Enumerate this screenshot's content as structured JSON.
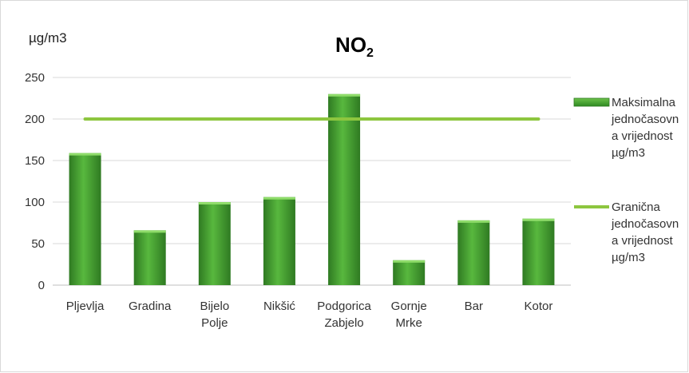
{
  "chart_data": {
    "type": "bar",
    "title": "NO",
    "title_subscript": "2",
    "ylabel": "µg/m3",
    "ylim": [
      0,
      250
    ],
    "yticks": [
      0,
      50,
      100,
      150,
      200,
      250
    ],
    "grid": "horizontal",
    "legend_position": "right",
    "categories": [
      [
        "Pljevlja"
      ],
      [
        "Gradina"
      ],
      [
        "Bijelo",
        "Polje"
      ],
      [
        "Nikšić"
      ],
      [
        "Podgorica",
        "Zabjelo"
      ],
      [
        "Gornje",
        "Mrke"
      ],
      [
        "Bar"
      ],
      [
        "Kotor"
      ]
    ],
    "series": [
      {
        "name": [
          "Maksimalna",
          "jednočasovn",
          "a vrijednost",
          "µg/m3"
        ],
        "type": "bar",
        "color": "#3f9a2f",
        "values": [
          159,
          66,
          100,
          106,
          230,
          30,
          78,
          80
        ]
      },
      {
        "name": [
          "Granična",
          "jednočasovn",
          "a vrijednost",
          "µg/m3"
        ],
        "type": "line",
        "color": "#8dc63f",
        "values": [
          200,
          200,
          200,
          200,
          200,
          200,
          200,
          200
        ]
      }
    ]
  }
}
